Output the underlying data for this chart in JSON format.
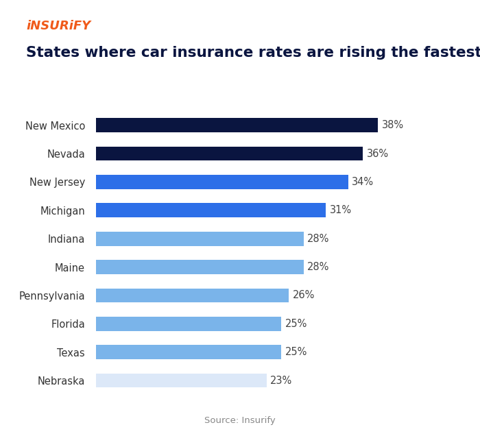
{
  "title": "States where car insurance rates are rising the fastest",
  "logo_text": "iNSURiFY",
  "source_text": "Source: Insurify",
  "categories": [
    "Nebraska",
    "Texas",
    "Florida",
    "Pennsylvania",
    "Maine",
    "Indiana",
    "Michigan",
    "New Jersey",
    "Nevada",
    "New Mexico"
  ],
  "values": [
    23,
    25,
    25,
    26,
    28,
    28,
    31,
    34,
    36,
    38
  ],
  "labels": [
    "23%",
    "25%",
    "25%",
    "26%",
    "28%",
    "28%",
    "31%",
    "34%",
    "36%",
    "38%"
  ],
  "bar_colors": [
    "#dce8f8",
    "#7ab4ea",
    "#7ab4ea",
    "#7ab4ea",
    "#7ab4ea",
    "#7ab4ea",
    "#2d6fe8",
    "#2d6fe8",
    "#0a1540",
    "#0a1540"
  ],
  "background_color": "#ffffff",
  "title_color": "#0a1540",
  "title_fontsize": 15.5,
  "label_fontsize": 10.5,
  "tick_fontsize": 10.5,
  "source_fontsize": 9.5,
  "logo_color": "#f05a1a",
  "xlim": [
    0,
    44
  ],
  "bar_height": 0.5
}
